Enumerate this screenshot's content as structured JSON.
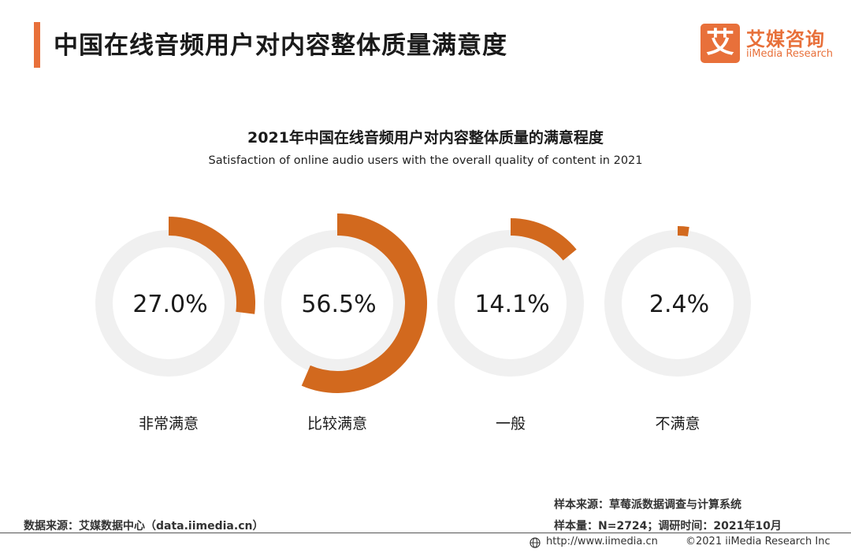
{
  "header": {
    "title": "中国在线音频用户对内容整体质量满意度",
    "brand_mark": "艾",
    "brand_name": "艾媒咨询",
    "brand_en": "iiMedia Research"
  },
  "colors": {
    "accent": "#d2691e",
    "track": "#f0f0f0",
    "brand": "#e8703a"
  },
  "chart_data": {
    "type": "pie",
    "title": "2021年中国在线音频用户对内容整体质量的满意程度",
    "subtitle": "Satisfaction of online audio users with the overall quality of content in 2021",
    "categories": [
      "非常满意",
      "比较满意",
      "一般",
      "不满意"
    ],
    "values": [
      27.0,
      56.5,
      14.1,
      2.4
    ],
    "value_labels": [
      "27.0%",
      "56.5%",
      "14.1%",
      "2.4%"
    ],
    "unit": "%",
    "max": 100
  },
  "footer": {
    "data_source": "数据来源：艾媒数据中心（data.iimedia.cn）",
    "sample_source": "样本来源：草莓派数据调查与计算系统",
    "sample_size": "样本量：N=2724；调研时间：2021年10月",
    "url": "http://www.iimedia.cn",
    "copyright": "©2021  iiMedia Research  Inc"
  }
}
